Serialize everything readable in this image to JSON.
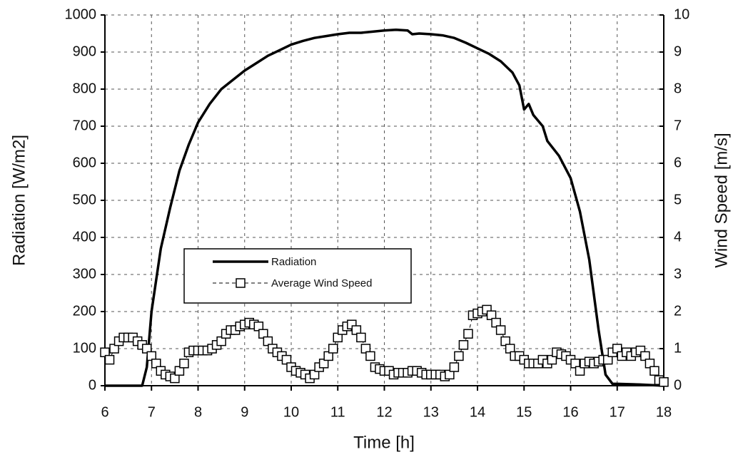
{
  "chart_data": {
    "type": "line",
    "xlabel": "Time [h]",
    "ylabel": "Radiation [W/m2]",
    "y2label": "Wind Speed [m/s]",
    "xlim": [
      6,
      18
    ],
    "xticks": [
      6,
      7,
      8,
      9,
      10,
      11,
      12,
      13,
      14,
      15,
      16,
      17,
      18
    ],
    "ylim": [
      0,
      1000
    ],
    "yticks": [
      0,
      100,
      200,
      300,
      400,
      500,
      600,
      700,
      800,
      900,
      1000
    ],
    "y2lim": [
      0,
      10
    ],
    "y2ticks": [
      0,
      1,
      2,
      3,
      4,
      5,
      6,
      7,
      8,
      9,
      10
    ],
    "grid": true,
    "legend": "center-left",
    "series": [
      {
        "name": "Radiation",
        "color": "#000000",
        "axis": "y",
        "x": [
          6,
          6.5,
          6.8,
          6.9,
          7.0,
          7.2,
          7.4,
          7.6,
          7.8,
          8.0,
          8.25,
          8.5,
          8.75,
          9.0,
          9.25,
          9.5,
          9.75,
          10,
          10.25,
          10.5,
          10.75,
          11,
          11.25,
          11.5,
          11.75,
          12,
          12.25,
          12.5,
          12.6,
          12.75,
          13,
          13.25,
          13.5,
          13.75,
          14,
          14.25,
          14.5,
          14.75,
          14.9,
          15.0,
          15.1,
          15.2,
          15.4,
          15.5,
          15.75,
          16,
          16.2,
          16.4,
          16.6,
          16.75,
          16.9,
          17,
          17.5,
          18
        ],
        "values": [
          0,
          0,
          0,
          50,
          200,
          370,
          480,
          580,
          650,
          710,
          760,
          800,
          825,
          850,
          870,
          890,
          905,
          920,
          930,
          938,
          943,
          948,
          952,
          952,
          955,
          958,
          960,
          958,
          948,
          950,
          948,
          945,
          938,
          925,
          910,
          895,
          875,
          845,
          810,
          745,
          760,
          730,
          700,
          660,
          620,
          560,
          470,
          340,
          150,
          30,
          5,
          5,
          3,
          0
        ]
      },
      {
        "name": "Average Wind Speed",
        "color": "#000000",
        "axis": "y2",
        "x": [
          6.0,
          6.1,
          6.2,
          6.3,
          6.4,
          6.5,
          6.6,
          6.7,
          6.8,
          6.9,
          7.0,
          7.1,
          7.2,
          7.3,
          7.4,
          7.5,
          7.6,
          7.7,
          7.8,
          7.9,
          8.0,
          8.1,
          8.2,
          8.3,
          8.4,
          8.5,
          8.6,
          8.7,
          8.8,
          8.9,
          9.0,
          9.1,
          9.2,
          9.3,
          9.4,
          9.5,
          9.6,
          9.7,
          9.8,
          9.9,
          10.0,
          10.1,
          10.2,
          10.3,
          10.4,
          10.5,
          10.6,
          10.7,
          10.8,
          10.9,
          11.0,
          11.1,
          11.2,
          11.3,
          11.4,
          11.5,
          11.6,
          11.7,
          11.8,
          11.9,
          12.0,
          12.1,
          12.2,
          12.3,
          12.4,
          12.5,
          12.6,
          12.7,
          12.8,
          12.9,
          13.0,
          13.1,
          13.2,
          13.3,
          13.4,
          13.5,
          13.6,
          13.7,
          13.8,
          13.9,
          14.0,
          14.1,
          14.2,
          14.3,
          14.4,
          14.5,
          14.6,
          14.7,
          14.8,
          14.9,
          15.0,
          15.1,
          15.2,
          15.3,
          15.4,
          15.5,
          15.6,
          15.7,
          15.8,
          15.9,
          16.0,
          16.1,
          16.2,
          16.3,
          16.4,
          16.5,
          16.6,
          16.7,
          16.8,
          16.9,
          17.0,
          17.1,
          17.2,
          17.3,
          17.4,
          17.5,
          17.6,
          17.7,
          17.8,
          17.9,
          18.0
        ],
        "values": [
          0.9,
          0.7,
          1.0,
          1.2,
          1.3,
          1.3,
          1.3,
          1.2,
          1.1,
          1.0,
          0.8,
          0.6,
          0.4,
          0.3,
          0.25,
          0.2,
          0.4,
          0.6,
          0.9,
          0.95,
          0.95,
          0.95,
          0.95,
          1.0,
          1.1,
          1.2,
          1.4,
          1.5,
          1.5,
          1.6,
          1.65,
          1.7,
          1.65,
          1.6,
          1.4,
          1.2,
          1.0,
          0.9,
          0.8,
          0.7,
          0.5,
          0.4,
          0.35,
          0.3,
          0.2,
          0.3,
          0.5,
          0.6,
          0.8,
          1.0,
          1.3,
          1.5,
          1.6,
          1.65,
          1.5,
          1.3,
          1.0,
          0.8,
          0.5,
          0.45,
          0.4,
          0.4,
          0.3,
          0.35,
          0.35,
          0.35,
          0.4,
          0.4,
          0.35,
          0.3,
          0.3,
          0.3,
          0.3,
          0.25,
          0.3,
          0.5,
          0.8,
          1.1,
          1.4,
          1.9,
          1.95,
          2.0,
          2.05,
          1.9,
          1.7,
          1.5,
          1.2,
          1.0,
          0.8,
          0.8,
          0.7,
          0.6,
          0.6,
          0.6,
          0.7,
          0.6,
          0.7,
          0.9,
          0.85,
          0.8,
          0.7,
          0.6,
          0.4,
          0.6,
          0.65,
          0.6,
          0.65,
          0.7,
          0.7,
          0.9,
          1.0,
          0.8,
          0.9,
          0.8,
          0.9,
          0.95,
          0.8,
          0.6,
          0.4,
          0.15,
          0.1
        ]
      }
    ]
  }
}
